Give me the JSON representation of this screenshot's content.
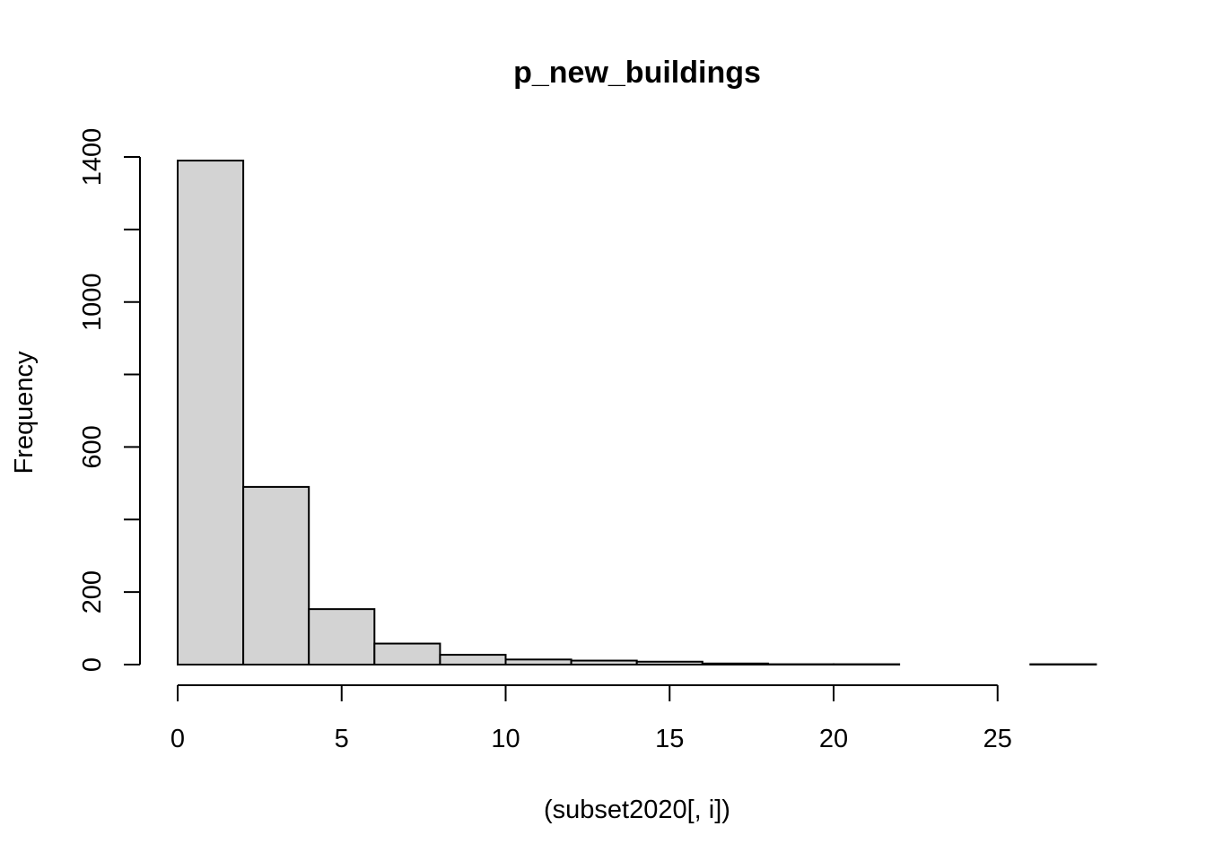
{
  "chart_data": {
    "type": "bar",
    "title": "p_new_buildings",
    "xlabel": "(subset2020[, i])",
    "ylabel": "Frequency",
    "xlim": [
      0,
      28
    ],
    "ylim": [
      0,
      1400
    ],
    "xticks": [
      0,
      5,
      10,
      15,
      20,
      25
    ],
    "yticks": [
      0,
      200,
      600,
      1000,
      1400
    ],
    "yminor_ticks": [
      400,
      800,
      1200
    ],
    "bins": [
      {
        "x0": 0,
        "x1": 2,
        "count": 1390
      },
      {
        "x0": 2,
        "x1": 4,
        "count": 490
      },
      {
        "x0": 4,
        "x1": 6,
        "count": 153
      },
      {
        "x0": 6,
        "x1": 8,
        "count": 58
      },
      {
        "x0": 8,
        "x1": 10,
        "count": 27
      },
      {
        "x0": 10,
        "x1": 12,
        "count": 14
      },
      {
        "x0": 12,
        "x1": 14,
        "count": 11
      },
      {
        "x0": 14,
        "x1": 16,
        "count": 8
      },
      {
        "x0": 16,
        "x1": 18,
        "count": 3
      },
      {
        "x0": 18,
        "x1": 20,
        "count": 1
      },
      {
        "x0": 20,
        "x1": 22,
        "count": 1
      },
      {
        "x0": 22,
        "x1": 24,
        "count": 0
      },
      {
        "x0": 24,
        "x1": 26,
        "count": 0
      },
      {
        "x0": 26,
        "x1": 28,
        "count": 1
      }
    ],
    "bar_color": "#d3d3d3",
    "grid": false
  }
}
